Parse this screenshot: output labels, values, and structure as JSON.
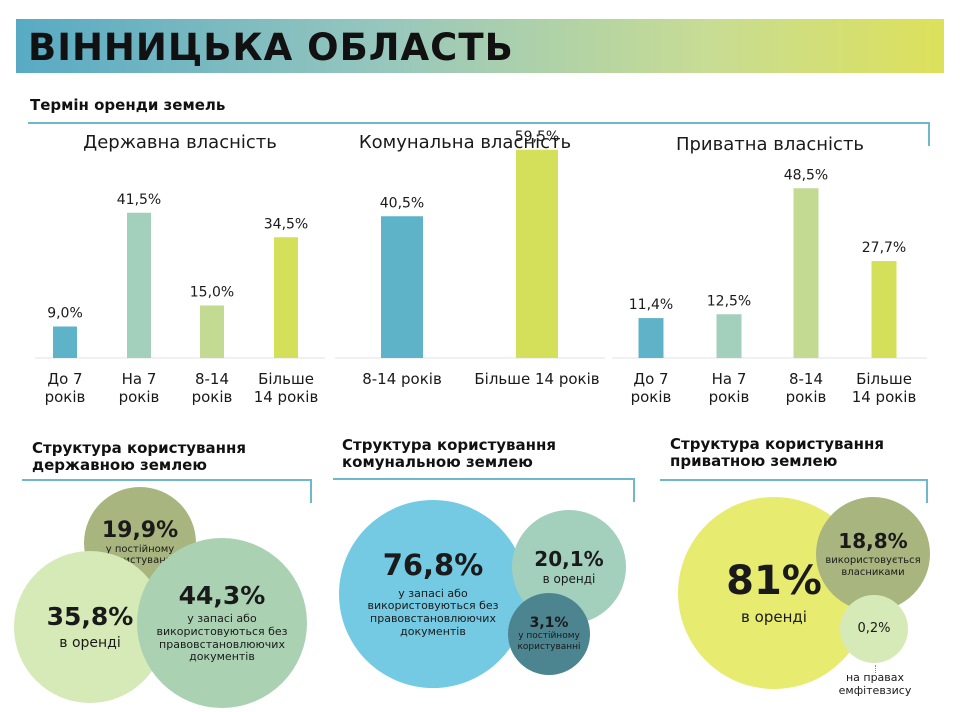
{
  "header": {
    "title": "ВІННИЦЬКА ОБЛАСТЬ"
  },
  "colors": {
    "teal": "#5fb3c8",
    "sage": "#a3cfbd",
    "pale_green": "#c3da93",
    "lime": "#d4e05a",
    "sky": "#74c9e3",
    "dark_teal": "#4c8490",
    "olive": "#a8b57e",
    "light_green": "#d6eab8",
    "mint": "#abd1b3",
    "green_grey": "#b5c992",
    "yellow": "#e7ec71"
  },
  "lease_section": {
    "title": "Термін оренди земель"
  },
  "usage_titles": {
    "state": [
      "Структура користування",
      "державною землею"
    ],
    "communal": [
      "Структура користування",
      "комунальною землею"
    ],
    "private": [
      "Структура користування",
      "приватною землею"
    ]
  },
  "chart_data": [
    {
      "type": "bar",
      "title": "Державна власність",
      "categories": [
        [
          "До 7",
          "років"
        ],
        [
          "На 7",
          "років"
        ],
        [
          "8-14",
          "років"
        ],
        [
          "Більше",
          "14 років"
        ]
      ],
      "values": [
        9.0,
        41.5,
        15.0,
        34.5
      ],
      "labels": [
        "9,0%",
        "41,5%",
        "15,0%",
        "34,5%"
      ],
      "colors": [
        "#5fb3c8",
        "#a3cfbd",
        "#c3da93",
        "#d4e05a"
      ],
      "ylim": [
        0,
        60
      ]
    },
    {
      "type": "bar",
      "title": "Комунальна власність",
      "categories": [
        [
          "8-14 років"
        ],
        [
          "Більше 14 років"
        ]
      ],
      "values": [
        40.5,
        59.5
      ],
      "labels": [
        "40,5%",
        "59,5%"
      ],
      "colors": [
        "#5fb3c8",
        "#d4e05a"
      ],
      "ylim": [
        0,
        60
      ]
    },
    {
      "type": "bar",
      "title": "Приватна власність",
      "categories": [
        [
          "До 7",
          "років"
        ],
        [
          "На 7",
          "років"
        ],
        [
          "8-14",
          "років"
        ],
        [
          "Більше",
          "14 років"
        ]
      ],
      "values": [
        11.4,
        12.5,
        48.5,
        27.7
      ],
      "labels": [
        "11,4%",
        "12,5%",
        "48,5%",
        "27,7%"
      ],
      "colors": [
        "#5fb3c8",
        "#a3cfbd",
        "#c3da93",
        "#d4e05a"
      ],
      "ylim": [
        0,
        60
      ]
    }
  ],
  "usage": {
    "state": [
      {
        "value": "19,9%",
        "lines": [
          "у постійному",
          "користуванні"
        ]
      },
      {
        "value": "35,8%",
        "lines": [
          "в оренді"
        ]
      },
      {
        "value": "44,3%",
        "lines": [
          "у запасі або",
          "використовуються без",
          "правовстановлюючих",
          "документів"
        ]
      }
    ],
    "communal": [
      {
        "value": "76,8%",
        "lines": [
          "у запасі або",
          "використовуються без",
          "правовстановлюючих",
          "документів"
        ]
      },
      {
        "value": "20,1%",
        "lines": [
          "в оренді"
        ]
      },
      {
        "value": "3,1%",
        "lines": [
          "у постійному",
          "користуванні"
        ]
      }
    ],
    "private": [
      {
        "value": "81%",
        "lines": [
          "в оренді"
        ]
      },
      {
        "value": "18,8%",
        "lines": [
          "використовується",
          "власниками"
        ]
      },
      {
        "value": "0,2%",
        "lines": [
          "на правах",
          "емфітевзису"
        ]
      }
    ]
  }
}
